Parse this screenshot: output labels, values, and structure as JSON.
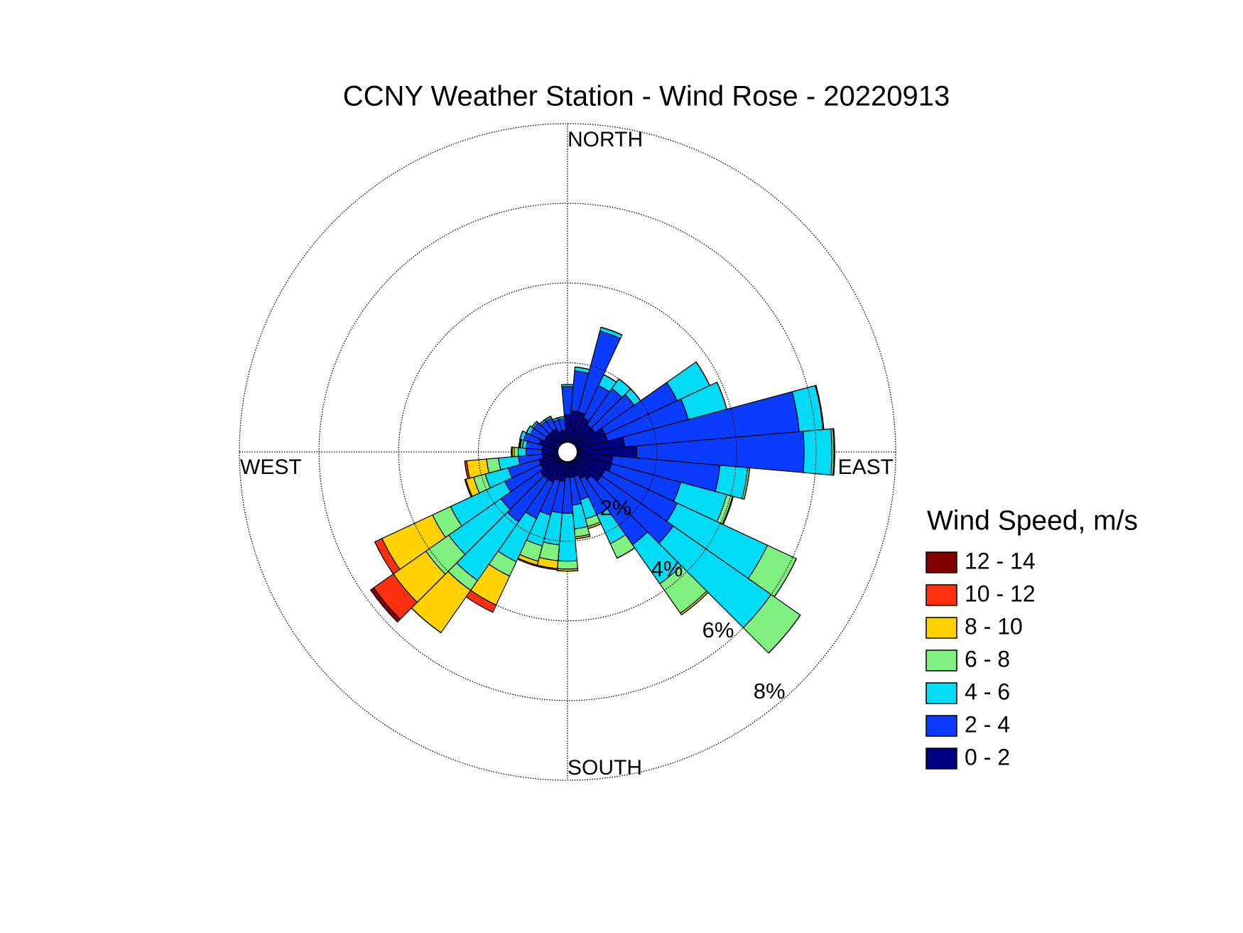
{
  "chart_data": {
    "type": "windrose",
    "title": "CCNY Weather Station - Wind Rose - 20220913",
    "legend_title": "Wind Speed, m/s",
    "compass_labels": [
      "NORTH",
      "EAST",
      "SOUTH",
      "WEST"
    ],
    "x": [
      0,
      10,
      20,
      30,
      40,
      50,
      60,
      70,
      80,
      90,
      100,
      110,
      120,
      130,
      140,
      150,
      160,
      170,
      180,
      190,
      200,
      210,
      220,
      230,
      240,
      250,
      260,
      270,
      280,
      290,
      300,
      310,
      320,
      330,
      340,
      350
    ],
    "rlim": [
      0,
      8
    ],
    "rticks": [
      {
        "value": 2,
        "label": "2%"
      },
      {
        "value": 4,
        "label": "4%"
      },
      {
        "value": 6,
        "label": "6%"
      },
      {
        "value": 8,
        "label": "8%"
      }
    ],
    "series": [
      {
        "name": "0 - 2",
        "color": "#000080",
        "values": [
          0.7,
          0.8,
          0.8,
          0.7,
          0.6,
          0.6,
          0.8,
          0.8,
          1.2,
          1.5,
          0.9,
          0.9,
          0.8,
          0.8,
          0.6,
          0.5,
          0.4,
          0.4,
          0.4,
          0.5,
          0.5,
          0.6,
          0.6,
          0.6,
          0.5,
          0.5,
          0.4,
          0.4,
          0.4,
          0.5,
          0.4,
          0.4,
          0.4,
          0.4,
          0.3,
          0.3
        ]
      },
      {
        "name": "2 - 4",
        "color": "#0a3cff",
        "values": [
          0.7,
          1.0,
          2.1,
          0.9,
          1.1,
          1.2,
          2.0,
          2.1,
          4.4,
          4.2,
          2.7,
          1.8,
          2.0,
          2.2,
          2.0,
          1.0,
          0.6,
          0.7,
          0.9,
          0.8,
          0.9,
          1.0,
          1.3,
          1.2,
          1.0,
          0.8,
          0.6,
          0.4,
          0.4,
          0.4,
          0.4,
          0.4,
          0.3,
          0.3,
          0.3,
          0.3
        ]
      },
      {
        "name": "4 - 6",
        "color": "#00dcf5",
        "values": [
          0.05,
          0.1,
          0.1,
          0.3,
          0.3,
          0.2,
          0.9,
          1.0,
          0.6,
          0.7,
          0.7,
          1.2,
          2.5,
          3.0,
          1.2,
          0.8,
          0.5,
          0.6,
          1.2,
          0.8,
          0.8,
          1.2,
          1.8,
          1.6,
          1.5,
          0.6,
          0.5,
          0.2,
          0.1,
          0.1,
          0.1,
          0.05,
          0.05,
          0.05,
          0.05,
          0.05
        ]
      },
      {
        "name": "6 - 8",
        "color": "#80f080",
        "values": [
          0,
          0,
          0,
          0,
          0,
          0,
          0,
          0,
          0.02,
          0.05,
          0.05,
          0.15,
          0.8,
          0.9,
          0.9,
          0.4,
          0.2,
          0.2,
          0.2,
          0.4,
          0.4,
          0.4,
          0.3,
          0.7,
          0.5,
          0.3,
          0.3,
          0.1,
          0.05,
          0,
          0,
          0,
          0,
          0,
          0,
          0
        ]
      },
      {
        "name": "8 - 10",
        "color": "#ffd200",
        "values": [
          0,
          0,
          0,
          0,
          0,
          0,
          0,
          0,
          0,
          0.02,
          0,
          0.02,
          0,
          0,
          0.05,
          0,
          0.05,
          0.05,
          0.05,
          0.2,
          0.1,
          0.8,
          1.3,
          1.0,
          1.4,
          0.2,
          0.5,
          0.05,
          0.02,
          0,
          0,
          0,
          0,
          0,
          0,
          0
        ]
      },
      {
        "name": "10 - 12",
        "color": "#ff3010",
        "values": [
          0,
          0,
          0,
          0,
          0,
          0,
          0,
          0,
          0,
          0,
          0,
          0,
          0,
          0,
          0,
          0,
          0,
          0,
          0,
          0.03,
          0.03,
          0.2,
          0,
          0.6,
          0.2,
          0.03,
          0.05,
          0.02,
          0.02,
          0,
          0,
          0,
          0,
          0,
          0,
          0
        ]
      },
      {
        "name": "12 - 14",
        "color": "#800000",
        "values": [
          0,
          0,
          0,
          0,
          0,
          0,
          0,
          0,
          0,
          0,
          0,
          0,
          0,
          0,
          0,
          0,
          0,
          0,
          0,
          0,
          0,
          0,
          0,
          0.1,
          0,
          0,
          0,
          0,
          0,
          0,
          0,
          0,
          0,
          0,
          0,
          0
        ]
      }
    ],
    "grid": true
  }
}
